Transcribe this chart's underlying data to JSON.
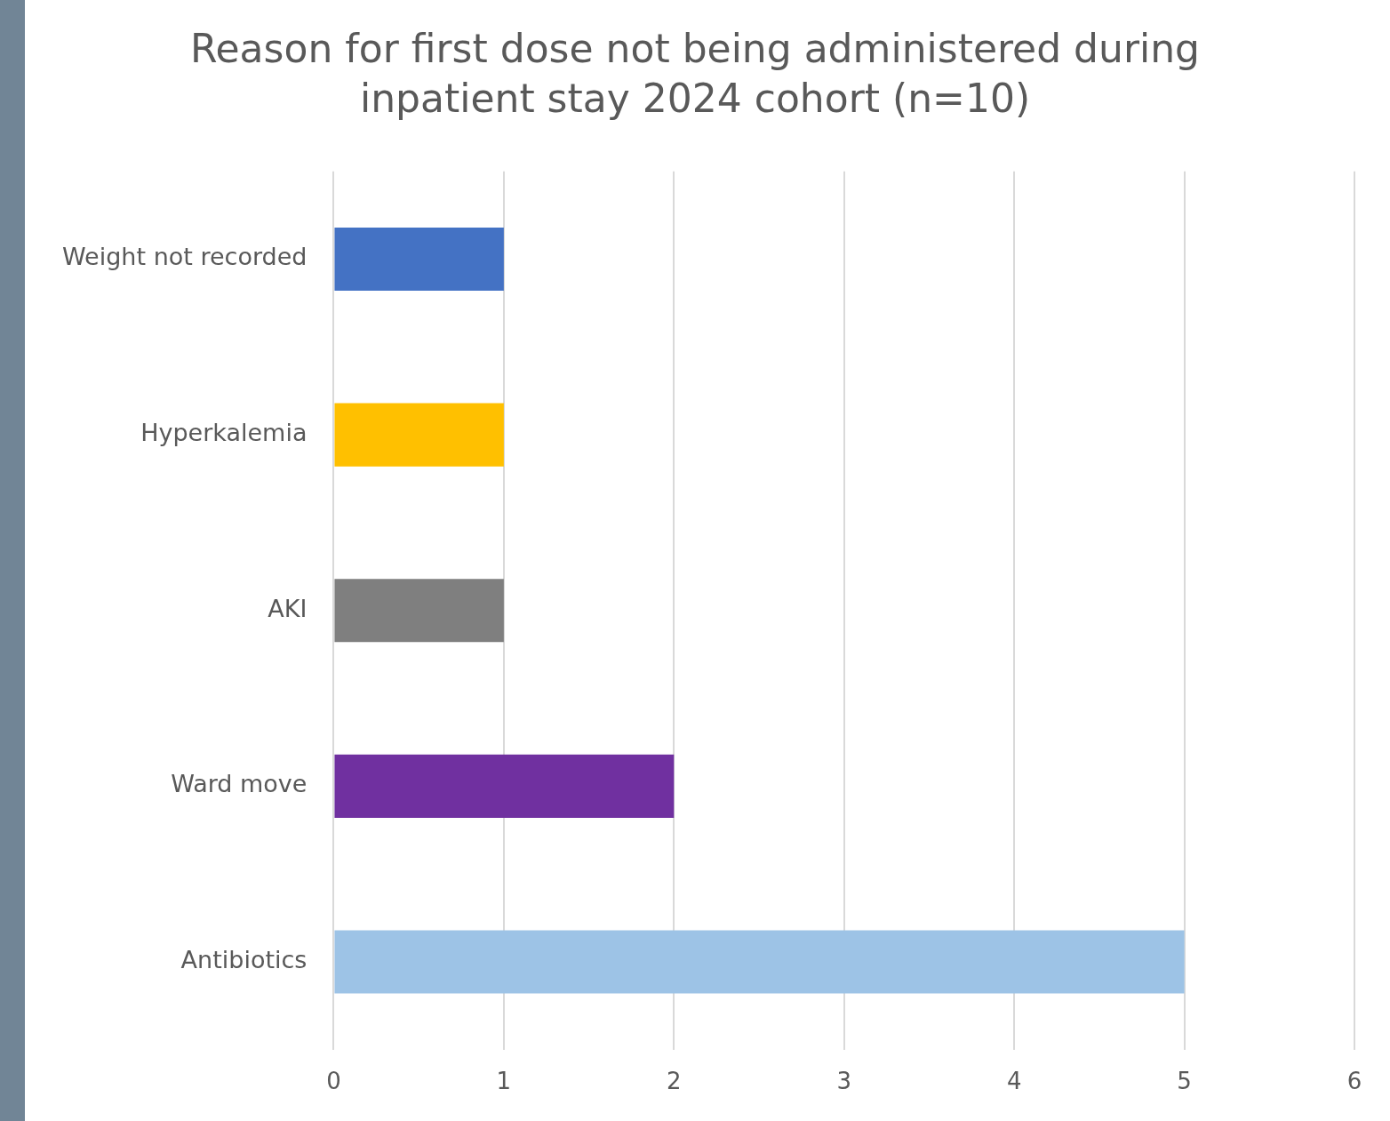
{
  "chart_data": {
    "type": "bar",
    "orientation": "horizontal",
    "title": "Reason for first dose not being administered during inpatient stay 2024 cohort (n=10)",
    "categories": [
      "Weight not recorded",
      "Hyperkalemia",
      "AKI",
      "Ward move",
      "Antibiotics"
    ],
    "values": [
      1,
      1,
      1,
      2,
      5
    ],
    "colors": [
      "#4472c4",
      "#ffc000",
      "#7f7f7f",
      "#7030a0",
      "#9dc3e6"
    ],
    "xlim": [
      0,
      6
    ],
    "xticks": [
      0,
      1,
      2,
      3,
      4,
      5,
      6
    ],
    "grid": "x",
    "legend": false
  }
}
